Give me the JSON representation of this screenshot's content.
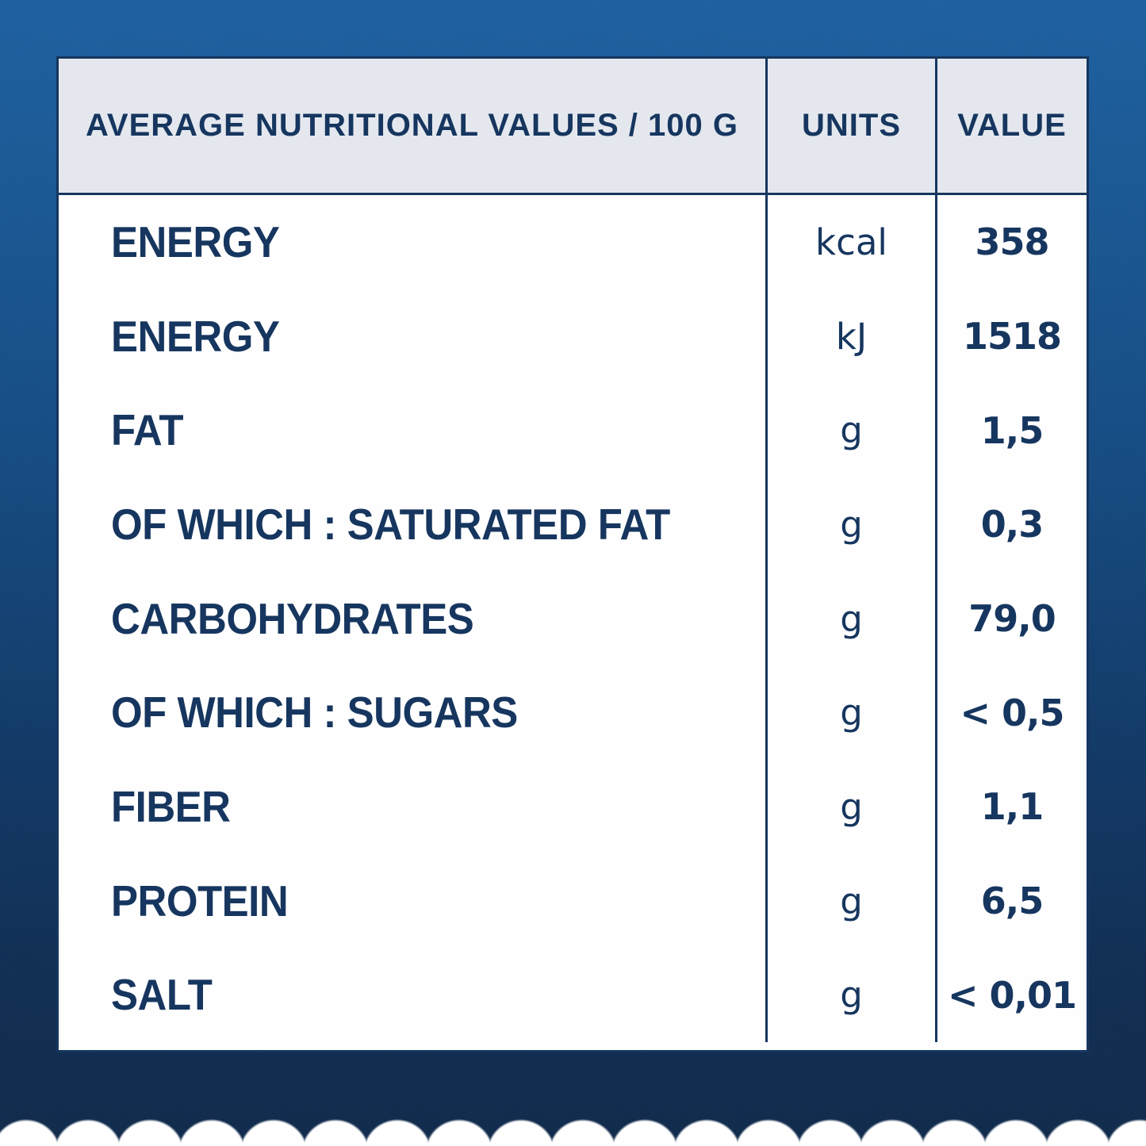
{
  "table": {
    "header": {
      "nutrients_label": "AVERAGE NUTRITIONAL VALUES / 100 G",
      "units_label": "UNITS",
      "value_label": "VALUE"
    },
    "rows": [
      {
        "label": "ENERGY",
        "unit": "kcal",
        "value": "358"
      },
      {
        "label": "ENERGY",
        "unit": "kJ",
        "value": "1518"
      },
      {
        "label": "FAT",
        "unit": "g",
        "value": "1,5"
      },
      {
        "label": "OF WHICH : SATURATED FAT",
        "unit": "g",
        "value": "0,3"
      },
      {
        "label": "CARBOHYDRATES",
        "unit": "g",
        "value": "79,0"
      },
      {
        "label": "OF WHICH : SUGARS",
        "unit": "g",
        "value": "< 0,5"
      },
      {
        "label": "FIBER",
        "unit": "g",
        "value": "1,1"
      },
      {
        "label": "PROTEIN",
        "unit": "g",
        "value": "6,5"
      },
      {
        "label": "SALT",
        "unit": "g",
        "value": "< 0,01"
      }
    ]
  },
  "colors": {
    "text_navy": "#16365f",
    "header_bg": "#e4e8ee",
    "table_bg": "#fefefe",
    "wrapper_blue_top": "#1e61a1",
    "wrapper_blue_bottom": "#102b4c"
  }
}
